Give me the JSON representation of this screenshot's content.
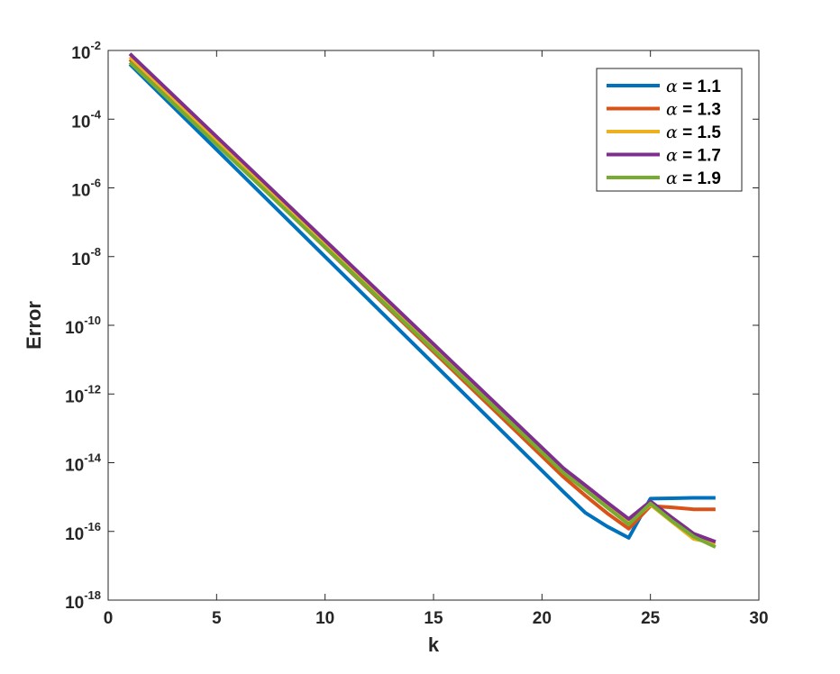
{
  "chart_data": {
    "type": "line",
    "xlabel": "k",
    "ylabel": "Error",
    "xlim": [
      0,
      30
    ],
    "ylim": [
      1e-18,
      0.01
    ],
    "yscale": "log",
    "x_ticks": [
      0,
      5,
      10,
      15,
      20,
      25,
      30
    ],
    "x_tick_labels": [
      "0",
      "5",
      "10",
      "15",
      "20",
      "25",
      "30"
    ],
    "y_ticks": [
      {
        "base": "10",
        "exp": "-18",
        "value": 1e-18
      },
      {
        "base": "10",
        "exp": "-16",
        "value": 1e-16
      },
      {
        "base": "10",
        "exp": "-14",
        "value": 1e-14
      },
      {
        "base": "10",
        "exp": "-12",
        "value": 1e-12
      },
      {
        "base": "10",
        "exp": "-10",
        "value": 1e-10
      },
      {
        "base": "10",
        "exp": "-8",
        "value": 1e-08
      },
      {
        "base": "10",
        "exp": "-6",
        "value": 1e-06
      },
      {
        "base": "10",
        "exp": "-4",
        "value": 0.0001
      },
      {
        "base": "10",
        "exp": "-2",
        "value": 0.01
      }
    ],
    "grid": false,
    "legend_position": "top-right",
    "x": [
      1,
      21,
      22,
      23,
      24,
      25,
      26,
      27,
      28
    ],
    "series": [
      {
        "name": "α = 1.1",
        "greek": "α",
        "label": " = 1.1",
        "color": "#0072BD",
        "values": [
          0.004,
          1.4e-15,
          3.5e-16,
          1.4e-16,
          6.5e-17,
          9e-16,
          9.2e-16,
          9.5e-16,
          9.5e-16
        ]
      },
      {
        "name": "α = 1.3",
        "greek": "α",
        "label": " = 1.3",
        "color": "#D95319",
        "values": [
          0.0055,
          3.8e-15,
          1.1e-15,
          3.4e-16,
          1.2e-16,
          5.5e-16,
          5e-16,
          4.4e-16,
          4.4e-16
        ]
      },
      {
        "name": "α = 1.5",
        "greek": "α",
        "label": " = 1.5",
        "color": "#EDB120",
        "values": [
          0.0065,
          5.6e-15,
          1.8e-15,
          5.8e-16,
          1.8e-16,
          6e-16,
          1.9e-16,
          6e-17,
          4.5e-17
        ]
      },
      {
        "name": "α = 1.7",
        "greek": "α",
        "label": " = 1.7",
        "color": "#7E2F8E",
        "values": [
          0.008,
          6.8e-15,
          2.2e-15,
          7e-16,
          2.3e-16,
          7.5e-16,
          2.5e-16,
          8.5e-17,
          5e-17
        ]
      },
      {
        "name": "α = 1.9",
        "greek": "α",
        "label": " = 1.9",
        "color": "#77AC30",
        "values": [
          0.0045,
          5e-15,
          1.6e-15,
          5e-16,
          1.6e-16,
          6.5e-16,
          2e-16,
          7e-17,
          3.5e-17
        ]
      }
    ]
  }
}
